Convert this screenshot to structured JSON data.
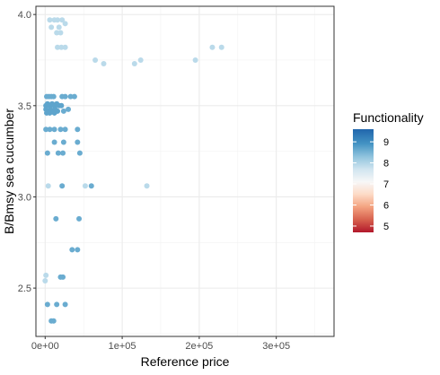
{
  "chart_data": {
    "type": "scatter",
    "title": "",
    "xlabel": "Reference price",
    "ylabel": "B/Bmsy sea cucumber",
    "xlim": [
      -12000,
      375000
    ],
    "ylim": [
      2.235,
      4.045
    ],
    "x_ticks": [
      0,
      100000,
      200000,
      300000
    ],
    "x_tick_labels": [
      "0e+00",
      "1e+05",
      "2e+05",
      "3e+05"
    ],
    "y_ticks": [
      2.5,
      3.0,
      3.5,
      4.0
    ],
    "y_tick_labels": [
      "2.5",
      "3.0",
      "3.5",
      "4.0"
    ],
    "grid": true,
    "legend": {
      "title": "Functionality",
      "placement": "right",
      "range": [
        4.7,
        9.6
      ],
      "breaks": [
        5,
        6,
        7,
        8,
        9
      ],
      "break_labels": [
        "5",
        "6",
        "7",
        "8",
        "9"
      ]
    },
    "points": [
      {
        "x": 6000,
        "y": 3.97,
        "c": 7.9
      },
      {
        "x": 12000,
        "y": 3.97,
        "c": 7.9
      },
      {
        "x": 16000,
        "y": 3.97,
        "c": 7.9
      },
      {
        "x": 22000,
        "y": 3.97,
        "c": 7.9
      },
      {
        "x": 8000,
        "y": 3.93,
        "c": 7.9
      },
      {
        "x": 18000,
        "y": 3.93,
        "c": 7.9
      },
      {
        "x": 26000,
        "y": 3.95,
        "c": 7.9
      },
      {
        "x": 15000,
        "y": 3.9,
        "c": 7.9
      },
      {
        "x": 20000,
        "y": 3.9,
        "c": 7.9
      },
      {
        "x": 16000,
        "y": 3.82,
        "c": 7.9
      },
      {
        "x": 21000,
        "y": 3.82,
        "c": 7.9
      },
      {
        "x": 26000,
        "y": 3.82,
        "c": 7.9
      },
      {
        "x": 65000,
        "y": 3.75,
        "c": 7.9
      },
      {
        "x": 76000,
        "y": 3.73,
        "c": 7.9
      },
      {
        "x": 116000,
        "y": 3.73,
        "c": 7.9
      },
      {
        "x": 124000,
        "y": 3.75,
        "c": 7.9
      },
      {
        "x": 195000,
        "y": 3.75,
        "c": 7.9
      },
      {
        "x": 217000,
        "y": 3.82,
        "c": 7.9
      },
      {
        "x": 229000,
        "y": 3.82,
        "c": 7.9
      },
      {
        "x": 2000,
        "y": 3.55,
        "c": 8.6
      },
      {
        "x": 5000,
        "y": 3.55,
        "c": 8.6
      },
      {
        "x": 8000,
        "y": 3.55,
        "c": 8.6
      },
      {
        "x": 11000,
        "y": 3.55,
        "c": 8.6
      },
      {
        "x": 22000,
        "y": 3.55,
        "c": 8.6
      },
      {
        "x": 26000,
        "y": 3.55,
        "c": 8.6
      },
      {
        "x": 33000,
        "y": 3.55,
        "c": 8.6
      },
      {
        "x": 38000,
        "y": 3.55,
        "c": 8.6
      },
      {
        "x": 1000,
        "y": 3.5,
        "c": 8.7
      },
      {
        "x": 3000,
        "y": 3.51,
        "c": 8.7
      },
      {
        "x": 6000,
        "y": 3.5,
        "c": 8.7
      },
      {
        "x": 9000,
        "y": 3.51,
        "c": 8.7
      },
      {
        "x": 12000,
        "y": 3.5,
        "c": 8.7
      },
      {
        "x": 15000,
        "y": 3.51,
        "c": 8.7
      },
      {
        "x": 18000,
        "y": 3.5,
        "c": 8.7
      },
      {
        "x": 21000,
        "y": 3.5,
        "c": 8.7
      },
      {
        "x": 1000,
        "y": 3.48,
        "c": 8.7
      },
      {
        "x": 4000,
        "y": 3.47,
        "c": 8.7
      },
      {
        "x": 7000,
        "y": 3.48,
        "c": 8.7
      },
      {
        "x": 10000,
        "y": 3.47,
        "c": 8.7
      },
      {
        "x": 13000,
        "y": 3.48,
        "c": 8.7
      },
      {
        "x": 16000,
        "y": 3.47,
        "c": 8.7
      },
      {
        "x": 2000,
        "y": 3.46,
        "c": 8.7
      },
      {
        "x": 6000,
        "y": 3.46,
        "c": 8.7
      },
      {
        "x": 12000,
        "y": 3.46,
        "c": 8.7
      },
      {
        "x": 24000,
        "y": 3.47,
        "c": 8.6
      },
      {
        "x": 30000,
        "y": 3.48,
        "c": 8.6
      },
      {
        "x": 1000,
        "y": 3.37,
        "c": 8.6
      },
      {
        "x": 6000,
        "y": 3.37,
        "c": 8.6
      },
      {
        "x": 12000,
        "y": 3.37,
        "c": 8.6
      },
      {
        "x": 20000,
        "y": 3.37,
        "c": 8.6
      },
      {
        "x": 26000,
        "y": 3.37,
        "c": 8.6
      },
      {
        "x": 42000,
        "y": 3.37,
        "c": 8.6
      },
      {
        "x": 12000,
        "y": 3.3,
        "c": 8.6
      },
      {
        "x": 24000,
        "y": 3.3,
        "c": 8.6
      },
      {
        "x": 42000,
        "y": 3.3,
        "c": 8.6
      },
      {
        "x": 3000,
        "y": 3.24,
        "c": 8.6
      },
      {
        "x": 17000,
        "y": 3.24,
        "c": 8.6
      },
      {
        "x": 23000,
        "y": 3.24,
        "c": 8.6
      },
      {
        "x": 45000,
        "y": 3.24,
        "c": 8.6
      },
      {
        "x": 4000,
        "y": 3.06,
        "c": 7.9
      },
      {
        "x": 52000,
        "y": 3.06,
        "c": 7.9
      },
      {
        "x": 132000,
        "y": 3.06,
        "c": 7.9
      },
      {
        "x": 22000,
        "y": 3.06,
        "c": 8.6
      },
      {
        "x": 60000,
        "y": 3.06,
        "c": 8.6
      },
      {
        "x": 14000,
        "y": 2.88,
        "c": 8.6
      },
      {
        "x": 44000,
        "y": 2.88,
        "c": 8.6
      },
      {
        "x": 35000,
        "y": 2.71,
        "c": 8.6
      },
      {
        "x": 42000,
        "y": 2.71,
        "c": 8.6
      },
      {
        "x": 1000,
        "y": 2.57,
        "c": 7.9
      },
      {
        "x": 0,
        "y": 2.54,
        "c": 7.9
      },
      {
        "x": 20000,
        "y": 2.56,
        "c": 8.6
      },
      {
        "x": 23000,
        "y": 2.56,
        "c": 8.6
      },
      {
        "x": 3000,
        "y": 2.41,
        "c": 8.6
      },
      {
        "x": 15000,
        "y": 2.41,
        "c": 8.6
      },
      {
        "x": 26000,
        "y": 2.41,
        "c": 8.6
      },
      {
        "x": 8000,
        "y": 2.32,
        "c": 8.6
      },
      {
        "x": 11000,
        "y": 2.32,
        "c": 8.6
      }
    ]
  }
}
